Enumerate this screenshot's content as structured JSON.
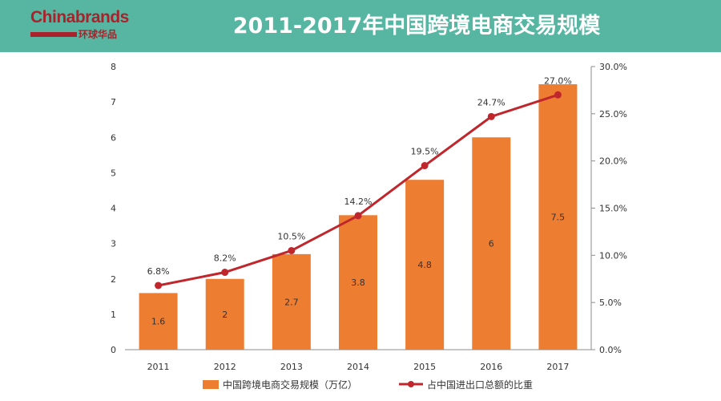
{
  "header": {
    "logo_text_first": "C",
    "logo_text_rest": "hinabrands",
    "logo_text_cn": "环球华品",
    "title": "2011-2017年中国跨境电商交易规模"
  },
  "colors": {
    "banner": "#56b6a1",
    "bar": "#ed7d31",
    "line": "#c0272d",
    "logo": "#a8232b"
  },
  "chart_data": {
    "type": "bar",
    "title": "2011-2017年中国跨境电商交易规模",
    "categories": [
      "2011",
      "2012",
      "2013",
      "2014",
      "2015",
      "2016",
      "2017"
    ],
    "series": [
      {
        "name": "中国跨境电商交易规模（万亿）",
        "type": "bar",
        "axis": "left",
        "values": [
          1.6,
          2,
          2.7,
          3.8,
          4.8,
          6,
          7.5
        ],
        "labels": [
          "1.6",
          "2",
          "2.7",
          "3.8",
          "4.8",
          "6",
          "7.5"
        ]
      },
      {
        "name": "占中国进出口总额的比重",
        "type": "line",
        "axis": "right",
        "values": [
          6.8,
          8.2,
          10.5,
          14.2,
          19.5,
          24.7,
          27.0
        ],
        "labels": [
          "6.8%",
          "8.2%",
          "10.5%",
          "14.2%",
          "19.5%",
          "24.7%",
          "27.0%"
        ]
      }
    ],
    "y_left": {
      "min": 0,
      "max": 8,
      "ticks": [
        "0",
        "1",
        "2",
        "3",
        "4",
        "5",
        "6",
        "7",
        "8"
      ]
    },
    "y_right": {
      "min": 0,
      "max": 30,
      "ticks": [
        "0.0%",
        "5.0%",
        "10.0%",
        "15.0%",
        "20.0%",
        "25.0%",
        "30.0%"
      ]
    },
    "grid": false,
    "legend_position": "bottom"
  }
}
